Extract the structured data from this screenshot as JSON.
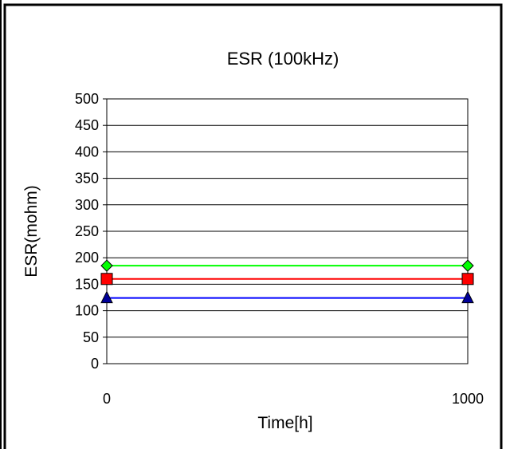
{
  "chart_data": {
    "type": "line",
    "title": "ESR (100kHz)",
    "xlabel": "Time[h]",
    "ylabel": "ESR(mohm)",
    "x": [
      0,
      1000
    ],
    "x_tick_labels": [
      "0",
      "1000"
    ],
    "y_tick_labels": [
      "0",
      "50",
      "100",
      "150",
      "200",
      "250",
      "300",
      "350",
      "400",
      "450",
      "500"
    ],
    "ylim": [
      0,
      500
    ],
    "xlim": [
      0,
      1000
    ],
    "grid": "horizontal",
    "legend": "none",
    "series": [
      {
        "values": [
          185,
          185
        ],
        "color": "#00ff00",
        "marker": "diamond",
        "marker_fill": "#00ff00"
      },
      {
        "values": [
          160,
          160
        ],
        "color": "#ff0000",
        "marker": "square",
        "marker_fill": "#ff0000"
      },
      {
        "values": [
          124,
          124
        ],
        "color": "#0000ff",
        "marker": "triangle",
        "marker_fill": "#000099"
      }
    ]
  }
}
